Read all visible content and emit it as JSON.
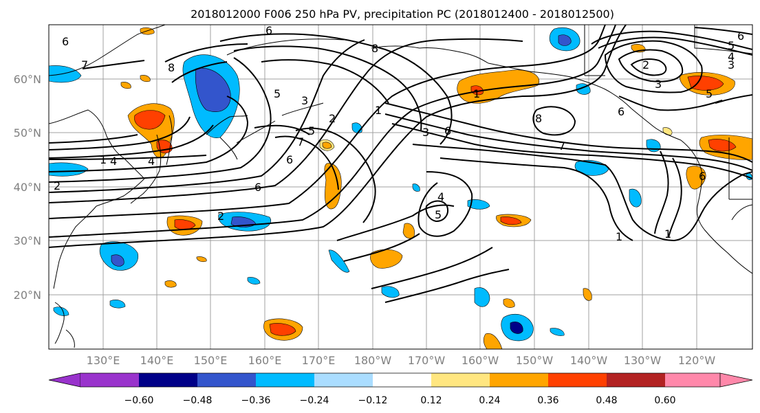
{
  "title": "2018012000 F006 250 hPa PV, precipitation PC (2018012400 - 2018012500)",
  "lat_labels": [
    "60°N",
    "50°N",
    "40°N",
    "30°N",
    "20°N"
  ],
  "lon_labels": [
    "130°E",
    "140°E",
    "150°E",
    "160°E",
    "170°E",
    "180°W",
    "170°W",
    "160°W",
    "150°W",
    "140°W",
    "130°W",
    "120°W"
  ],
  "colorbar": {
    "colors": [
      "#9933cc",
      "#000088",
      "#3355cc",
      "#00bbff",
      "#aaddff",
      "#ffffff",
      "#ffe680",
      "#ffa500",
      "#ff4000",
      "#b22222",
      "#ff88aa"
    ],
    "tick_labels": [
      "−0.60",
      "−0.48",
      "−0.36",
      "−0.24",
      "−0.12",
      "0.12",
      "0.24",
      "0.36",
      "0.48",
      "0.60"
    ]
  },
  "contour_labels": [
    "6",
    "7",
    "8",
    "6",
    "5",
    "3",
    "4",
    "2",
    "1",
    "2",
    "6",
    "5",
    "7",
    "4",
    "6",
    "2",
    "1",
    "4",
    "5",
    "3",
    "6",
    "8",
    "6",
    "7",
    "1",
    "3",
    "3",
    "2",
    "4",
    "5",
    "6",
    "5",
    "1",
    "8",
    "1",
    "6"
  ]
}
